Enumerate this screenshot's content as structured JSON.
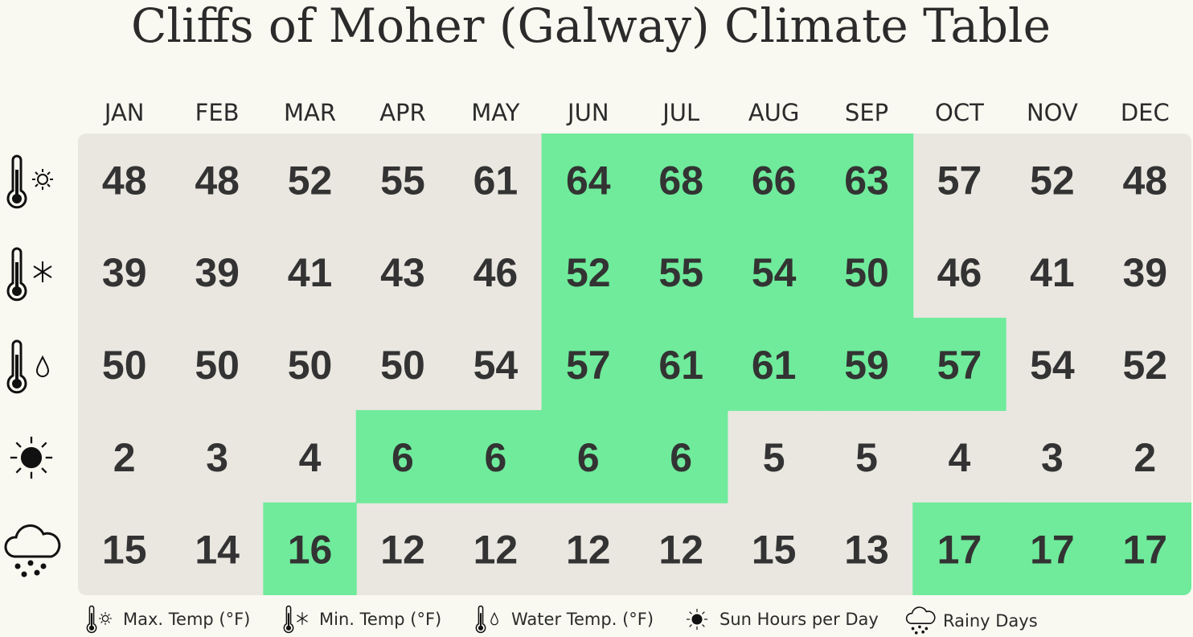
{
  "title": "Cliffs of Moher (Galway) Climate Table",
  "months": [
    "JAN",
    "FEB",
    "MAR",
    "APR",
    "MAY",
    "JUN",
    "JUL",
    "AUG",
    "SEP",
    "OCT",
    "NOV",
    "DEC"
  ],
  "highlight_color": "#6feb9b",
  "rows": [
    {
      "values": [
        48,
        48,
        52,
        55,
        61,
        64,
        68,
        66,
        63,
        57,
        52,
        48
      ],
      "highlight": [
        false,
        false,
        false,
        false,
        false,
        true,
        true,
        true,
        true,
        false,
        false,
        false
      ]
    },
    {
      "values": [
        39,
        39,
        41,
        43,
        46,
        52,
        55,
        54,
        50,
        46,
        41,
        39
      ],
      "highlight": [
        false,
        false,
        false,
        false,
        false,
        true,
        true,
        true,
        true,
        false,
        false,
        false
      ]
    },
    {
      "values": [
        50,
        50,
        50,
        50,
        54,
        57,
        61,
        61,
        59,
        57,
        54,
        52
      ],
      "highlight": [
        false,
        false,
        false,
        false,
        false,
        true,
        true,
        true,
        true,
        true,
        false,
        false
      ]
    },
    {
      "values": [
        2,
        3,
        4,
        6,
        6,
        6,
        6,
        5,
        5,
        4,
        3,
        2
      ],
      "highlight": [
        false,
        false,
        false,
        true,
        true,
        true,
        true,
        false,
        false,
        false,
        false,
        false
      ]
    },
    {
      "values": [
        15,
        14,
        16,
        12,
        12,
        12,
        12,
        15,
        13,
        17,
        17,
        17
      ],
      "highlight": [
        false,
        false,
        true,
        false,
        false,
        false,
        false,
        false,
        false,
        true,
        true,
        true
      ]
    }
  ],
  "legend": [
    "Max. Temp (°F)",
    "Min. Temp (°F)",
    "Water Temp. (°F)",
    "Sun Hours per Day",
    "Rainy Days"
  ]
}
